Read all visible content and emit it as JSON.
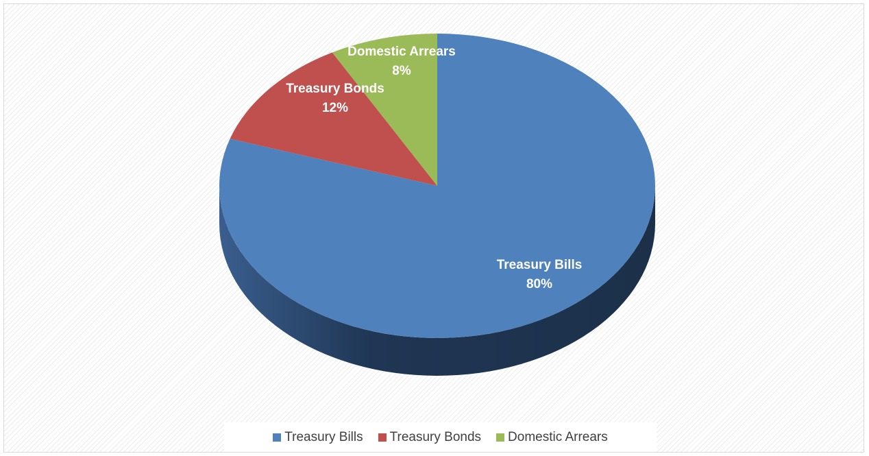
{
  "chart_data": {
    "type": "pie",
    "style": "3d",
    "title": "",
    "legend_position": "bottom",
    "slices": [
      {
        "label": "Treasury Bills",
        "value": 80,
        "display": "80%",
        "color": "#4f81bd"
      },
      {
        "label": "Treasury Bonds",
        "value": 12,
        "display": "12%",
        "color": "#c0504d"
      },
      {
        "label": "Domestic Arrears",
        "value": 8,
        "display": "8%",
        "color": "#9bbb59"
      }
    ]
  },
  "legend": {
    "items": [
      {
        "label": "Treasury Bills",
        "color": "#4f81bd"
      },
      {
        "label": "Treasury Bonds",
        "color": "#c0504d"
      },
      {
        "label": "Domestic Arrears",
        "color": "#9bbb59"
      }
    ]
  }
}
